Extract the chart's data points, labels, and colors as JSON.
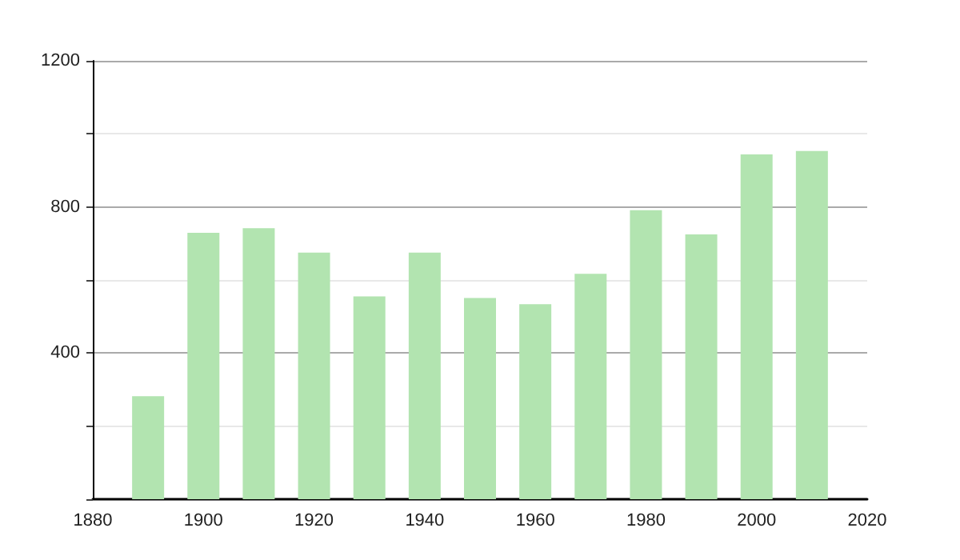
{
  "chart_data": {
    "type": "bar",
    "x": [
      1890,
      1900,
      1910,
      1920,
      1930,
      1940,
      1950,
      1960,
      1970,
      1980,
      1990,
      2000,
      2010
    ],
    "values": [
      282,
      729,
      742,
      675,
      555,
      675,
      551,
      534,
      617,
      791,
      725,
      944,
      953
    ],
    "color": "#b2e4b0",
    "xlim": [
      1880,
      2020
    ],
    "xticks": [
      1880,
      1900,
      1920,
      1940,
      1960,
      1980,
      2000,
      2020
    ],
    "ylim": [
      0,
      1200
    ],
    "yticks": [
      {
        "value": 0,
        "label": null
      },
      {
        "value": 200,
        "label": null
      },
      400,
      {
        "value": 600,
        "label": null
      },
      800,
      {
        "value": 1000,
        "label": null
      },
      1200
    ],
    "grid": "y"
  }
}
